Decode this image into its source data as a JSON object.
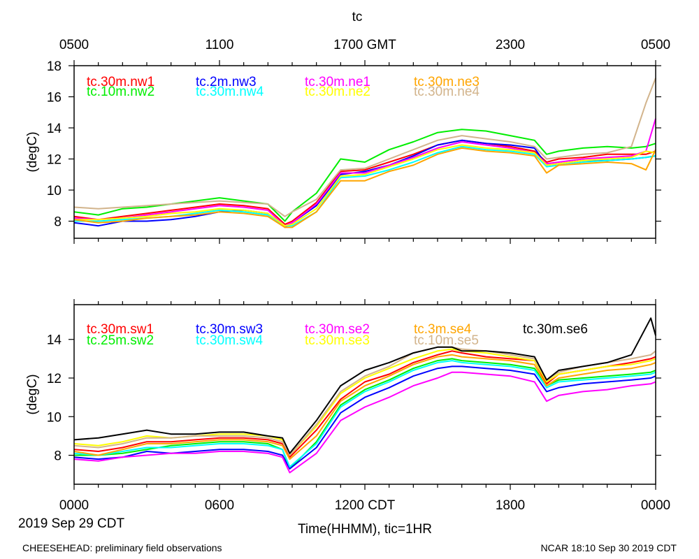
{
  "figure": {
    "title": "tc",
    "date_label": "2019 Sep 29 CDT",
    "x_title": "Time(HHMM), tic=1HR",
    "footer_left": "CHEESEHEAD: preliminary field observations",
    "footer_right": "NCAR 18:10 Sep 30 2019 CDT"
  },
  "top_axis_labels": [
    "0500",
    "1100",
    "1700 GMT",
    "2300",
    "0500"
  ],
  "bottom_axis_labels": [
    "0000",
    "0600",
    "1200 CDT",
    "1800",
    "0000"
  ],
  "chart_data": [
    {
      "type": "line",
      "id": "top",
      "ylabel": "(degC)",
      "xlim": [
        0,
        24
      ],
      "ylim": [
        6.9,
        18
      ],
      "yticks": [
        8,
        10,
        12,
        14,
        16,
        18
      ],
      "x": [
        0,
        1,
        2,
        3,
        4,
        5,
        6,
        7,
        8,
        8.7,
        9,
        10,
        11,
        12,
        13,
        14,
        15,
        16,
        17,
        18,
        19,
        19.5,
        20,
        21,
        22,
        23,
        23.6,
        24
      ],
      "series": [
        {
          "name": "tc.30m.nw1",
          "color": "#ff0000",
          "values": [
            8.3,
            8.1,
            8.3,
            8.5,
            8.7,
            8.9,
            9.1,
            9.0,
            8.8,
            7.8,
            8.0,
            9.2,
            11.2,
            11.3,
            11.8,
            12.3,
            12.9,
            13.2,
            13.0,
            12.8,
            12.5,
            11.8,
            12.0,
            12.1,
            12.3,
            12.3,
            12.3,
            12.5
          ]
        },
        {
          "name": "tc.10m.nw2",
          "color": "#00ee00",
          "values": [
            8.6,
            8.4,
            8.8,
            8.9,
            9.1,
            9.3,
            9.5,
            9.3,
            9.1,
            8.0,
            8.6,
            9.8,
            12.0,
            11.8,
            12.6,
            13.1,
            13.7,
            13.9,
            13.8,
            13.5,
            13.2,
            12.3,
            12.5,
            12.7,
            12.8,
            12.7,
            12.8,
            13.0
          ]
        },
        {
          "name": "tc.2m.nw3",
          "color": "#0000ff",
          "values": [
            7.9,
            7.7,
            8.0,
            8.0,
            8.1,
            8.3,
            8.6,
            8.7,
            8.5,
            7.6,
            7.9,
            9.0,
            11.0,
            11.2,
            11.6,
            12.2,
            12.9,
            13.2,
            13.0,
            12.9,
            12.7,
            11.6,
            11.7,
            11.9,
            11.9,
            12.0,
            12.1,
            12.2
          ]
        },
        {
          "name": "tc.30m.nw4",
          "color": "#00ffff",
          "values": [
            8.0,
            8.0,
            8.1,
            8.2,
            8.3,
            8.5,
            8.7,
            8.6,
            8.4,
            7.7,
            7.7,
            8.6,
            10.8,
            10.9,
            11.3,
            11.8,
            12.4,
            12.8,
            12.6,
            12.5,
            12.3,
            11.5,
            11.6,
            11.8,
            11.9,
            12.0,
            12.1,
            12.2
          ]
        },
        {
          "name": "tc.30m.ne1",
          "color": "#ff00ff",
          "values": [
            8.2,
            8.1,
            8.2,
            8.4,
            8.6,
            8.8,
            9.0,
            8.9,
            8.7,
            7.7,
            7.9,
            9.1,
            11.1,
            11.1,
            11.6,
            12.1,
            12.7,
            13.1,
            12.9,
            12.7,
            12.4,
            11.7,
            11.8,
            12.0,
            12.1,
            12.2,
            12.5,
            14.6
          ]
        },
        {
          "name": "tc.30m.ne2",
          "color": "#ffff00",
          "values": [
            8.1,
            8.1,
            8.2,
            8.3,
            8.5,
            8.6,
            8.8,
            8.7,
            8.5,
            7.7,
            7.8,
            8.8,
            10.9,
            11.0,
            11.5,
            12.0,
            12.6,
            12.9,
            12.7,
            12.6,
            12.4,
            11.6,
            11.7,
            11.9,
            12.0,
            12.1,
            12.5,
            12.4
          ]
        },
        {
          "name": "tc.30m.ne3",
          "color": "#ffa500",
          "values": [
            8.1,
            7.9,
            8.0,
            8.2,
            8.3,
            8.4,
            8.6,
            8.5,
            8.3,
            7.6,
            7.6,
            8.6,
            10.6,
            10.6,
            11.2,
            11.6,
            12.3,
            12.7,
            12.5,
            12.4,
            12.2,
            11.1,
            11.6,
            11.7,
            11.8,
            11.7,
            11.3,
            12.6
          ]
        },
        {
          "name": "tc.30m.ne4",
          "color": "#d2b48c",
          "values": [
            8.9,
            8.8,
            8.9,
            9.0,
            9.1,
            9.2,
            9.3,
            9.2,
            9.1,
            8.3,
            8.6,
            9.4,
            11.3,
            11.4,
            12.0,
            12.6,
            13.2,
            13.5,
            13.3,
            13.1,
            12.8,
            12.0,
            12.1,
            12.3,
            12.4,
            12.8,
            15.6,
            17.2
          ]
        }
      ]
    },
    {
      "type": "line",
      "id": "bottom",
      "ylabel": "(degC)",
      "xlim": [
        0,
        24
      ],
      "ylim": [
        6.5,
        15.8
      ],
      "yticks": [
        8,
        10,
        12,
        14
      ],
      "x": [
        0,
        1,
        2,
        3,
        4,
        5,
        6,
        7,
        8,
        8.6,
        8.9,
        10,
        11,
        12,
        13,
        14,
        15,
        15.6,
        16,
        17,
        18,
        19,
        19.5,
        20,
        21,
        22,
        23,
        23.8,
        24
      ],
      "series": [
        {
          "name": "tc.30m.sw1",
          "color": "#ff0000",
          "values": [
            8.3,
            8.2,
            8.4,
            8.7,
            8.7,
            8.8,
            8.9,
            8.9,
            8.8,
            8.6,
            7.9,
            9.3,
            10.9,
            11.8,
            12.2,
            12.8,
            13.2,
            13.4,
            13.3,
            13.1,
            13.0,
            12.9,
            11.7,
            12.2,
            12.4,
            12.6,
            12.8,
            13.0,
            13.1
          ]
        },
        {
          "name": "tc.25m.sw2",
          "color": "#00ee00",
          "values": [
            8.0,
            8.0,
            8.1,
            8.3,
            8.5,
            8.6,
            8.7,
            8.7,
            8.6,
            8.3,
            7.3,
            8.7,
            10.6,
            11.4,
            11.9,
            12.5,
            12.9,
            13.0,
            12.9,
            12.8,
            12.7,
            12.5,
            11.6,
            11.9,
            12.0,
            12.1,
            12.2,
            12.3,
            12.4
          ]
        },
        {
          "name": "tc.30m.sw3",
          "color": "#0000ff",
          "values": [
            7.9,
            7.8,
            7.9,
            8.2,
            8.1,
            8.2,
            8.3,
            8.3,
            8.2,
            8.0,
            7.3,
            8.4,
            10.2,
            11.0,
            11.5,
            12.1,
            12.5,
            12.6,
            12.6,
            12.5,
            12.4,
            12.2,
            11.3,
            11.5,
            11.7,
            11.8,
            11.9,
            12.0,
            12.1
          ]
        },
        {
          "name": "tc.30m.sw4",
          "color": "#00ffff",
          "values": [
            8.1,
            8.0,
            8.2,
            8.4,
            8.4,
            8.5,
            8.6,
            8.6,
            8.5,
            8.3,
            7.4,
            8.6,
            10.5,
            11.3,
            11.8,
            12.4,
            12.8,
            12.9,
            12.8,
            12.7,
            12.6,
            12.4,
            11.5,
            11.8,
            11.9,
            12.0,
            12.1,
            12.2,
            12.3
          ]
        },
        {
          "name": "tc.30m.se2",
          "color": "#ff00ff",
          "values": [
            7.8,
            7.7,
            7.9,
            8.0,
            8.1,
            8.1,
            8.2,
            8.2,
            8.1,
            7.9,
            7.1,
            8.1,
            9.8,
            10.5,
            11.0,
            11.6,
            12.0,
            12.3,
            12.3,
            12.2,
            12.1,
            11.8,
            10.8,
            11.1,
            11.3,
            11.4,
            11.6,
            11.7,
            11.8
          ]
        },
        {
          "name": "tc.30m.se3",
          "color": "#ffff00",
          "values": [
            8.6,
            8.5,
            8.7,
            9.0,
            8.9,
            9.0,
            9.1,
            9.1,
            9.0,
            8.8,
            8.0,
            9.5,
            11.2,
            12.0,
            12.5,
            13.0,
            13.4,
            13.5,
            13.4,
            13.3,
            13.1,
            12.9,
            11.8,
            12.2,
            12.4,
            12.6,
            12.7,
            12.9,
            13.0
          ]
        },
        {
          "name": "tc.3m.se4",
          "color": "#ffa500",
          "values": [
            8.2,
            8.0,
            8.3,
            8.6,
            8.6,
            8.7,
            8.8,
            8.8,
            8.7,
            8.5,
            7.8,
            9.0,
            10.8,
            11.6,
            12.1,
            12.7,
            13.1,
            13.2,
            13.1,
            13.0,
            12.9,
            12.7,
            11.6,
            12.0,
            12.2,
            12.4,
            12.5,
            12.7,
            12.8
          ]
        },
        {
          "name": "tc.10m.se5",
          "color": "#d2b48c",
          "values": [
            8.5,
            8.4,
            8.6,
            8.9,
            8.9,
            9.0,
            9.0,
            9.0,
            8.9,
            8.7,
            8.0,
            9.6,
            11.3,
            12.1,
            12.6,
            13.3,
            13.6,
            13.6,
            13.5,
            13.4,
            13.2,
            13.0,
            11.9,
            12.3,
            12.6,
            12.8,
            13.0,
            13.2,
            13.4
          ]
        },
        {
          "name": "tc.30m.se6",
          "color": "#000000",
          "values": [
            8.8,
            8.9,
            9.1,
            9.3,
            9.1,
            9.1,
            9.2,
            9.2,
            9.0,
            8.9,
            8.1,
            9.8,
            11.6,
            12.4,
            12.8,
            13.3,
            13.6,
            13.6,
            13.4,
            13.4,
            13.3,
            13.1,
            11.9,
            12.4,
            12.6,
            12.8,
            13.2,
            15.1,
            14.2
          ]
        }
      ]
    }
  ]
}
